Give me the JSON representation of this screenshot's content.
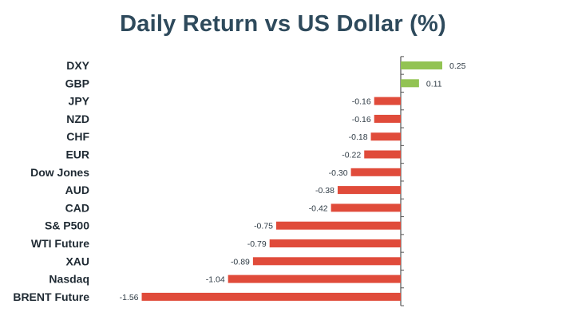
{
  "chart_data": {
    "type": "bar",
    "orientation": "horizontal",
    "title": "Daily Return vs US Dollar (%)",
    "categories": [
      "DXY",
      "GBP",
      "JPY",
      "NZD",
      "CHF",
      "EUR",
      "Dow Jones",
      "AUD",
      "CAD",
      "S& P500",
      "WTI Future",
      "XAU",
      "Nasdaq",
      "BRENT Future"
    ],
    "values": [
      0.25,
      0.11,
      -0.16,
      -0.16,
      -0.18,
      -0.22,
      -0.3,
      -0.38,
      -0.42,
      -0.75,
      -0.79,
      -0.89,
      -1.04,
      -1.56
    ],
    "value_labels": [
      "0.25",
      "0.11",
      "-0.16",
      "-0.16",
      "-0.18",
      "-0.22",
      "-0.30",
      "-0.38",
      "-0.42",
      "-0.75",
      "-0.79",
      "-0.89",
      "-1.04",
      "-1.56"
    ],
    "colors": {
      "positive": "#92c353",
      "negative": "#e04b3a",
      "axis": "#555555",
      "title": "#2e4a5c"
    },
    "grid": false,
    "legend": "none"
  }
}
